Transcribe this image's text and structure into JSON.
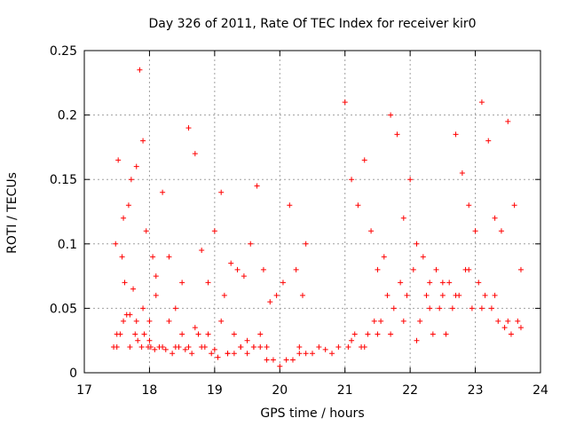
{
  "chart_data": {
    "type": "scatter",
    "title": "Day 326 of 2011, Rate Of TEC Index for receiver kir0",
    "xlabel": "GPS time / hours",
    "ylabel": "ROTI / TECUs",
    "xlim": [
      17,
      24
    ],
    "ylim": [
      0,
      0.25
    ],
    "x_ticks": [
      "17",
      "18",
      "19",
      "20",
      "21",
      "22",
      "23",
      "24"
    ],
    "y_ticks": [
      "0",
      "0.05",
      "0.1",
      "0.15",
      "0.2",
      "0.25"
    ],
    "grid": true,
    "legend": "none",
    "marker": "+",
    "color": "#ff0000",
    "series": [
      {
        "x": [
          17.45,
          17.48,
          17.5,
          17.52,
          17.55,
          17.58,
          17.6,
          17.62,
          17.65,
          17.68,
          17.7,
          17.72,
          17.75,
          17.78,
          17.8,
          17.82,
          17.85,
          17.88,
          17.9,
          17.92,
          17.95,
          17.98,
          18.0,
          18.02,
          18.05,
          18.08,
          18.1,
          18.15,
          18.2,
          18.25,
          18.3,
          18.35,
          18.4,
          18.45,
          18.5,
          18.55,
          18.6,
          18.65,
          18.7,
          18.75,
          18.8,
          18.85,
          18.9,
          18.95,
          19.0,
          19.05,
          19.1,
          19.15,
          19.2,
          19.25,
          19.3,
          19.35,
          19.4,
          19.45,
          19.5,
          19.55,
          19.6,
          19.65,
          19.7,
          19.75,
          19.8,
          19.85,
          19.9,
          19.95,
          20.0,
          20.05,
          20.1,
          20.15,
          20.2,
          20.25,
          20.3,
          20.35,
          20.4,
          20.5,
          20.6,
          20.7,
          20.8,
          20.9,
          21.0,
          21.05,
          21.1,
          21.15,
          21.2,
          21.25,
          21.3,
          21.35,
          21.4,
          21.45,
          21.5,
          21.55,
          21.6,
          21.65,
          21.7,
          21.75,
          21.8,
          21.85,
          21.9,
          21.95,
          22.0,
          22.05,
          22.1,
          22.15,
          22.2,
          22.25,
          22.3,
          22.35,
          22.4,
          22.45,
          22.5,
          22.55,
          22.6,
          22.65,
          22.7,
          22.75,
          22.8,
          22.85,
          22.9,
          22.95,
          23.0,
          23.05,
          23.1,
          23.15,
          23.2,
          23.25,
          23.3,
          23.35,
          23.4,
          23.45,
          23.5,
          23.55,
          23.6,
          23.65,
          23.7,
          17.5,
          17.6,
          17.7,
          17.8,
          17.9,
          18.0,
          18.1,
          18.2,
          18.3,
          18.4,
          18.5,
          18.6,
          18.7,
          18.8,
          18.9,
          19.0,
          19.1,
          19.2,
          19.3,
          19.4,
          19.5,
          19.6,
          19.7,
          19.8,
          20.3,
          20.4,
          21.1,
          21.3,
          21.5,
          21.7,
          21.9,
          22.1,
          22.3,
          22.5,
          22.7,
          22.9,
          23.1,
          23.3,
          23.5,
          23.7
        ],
        "y": [
          0.02,
          0.1,
          0.02,
          0.165,
          0.03,
          0.09,
          0.04,
          0.07,
          0.045,
          0.13,
          0.02,
          0.15,
          0.065,
          0.03,
          0.16,
          0.025,
          0.235,
          0.02,
          0.18,
          0.03,
          0.11,
          0.02,
          0.04,
          0.02,
          0.09,
          0.018,
          0.075,
          0.02,
          0.14,
          0.018,
          0.09,
          0.015,
          0.05,
          0.02,
          0.07,
          0.018,
          0.19,
          0.015,
          0.17,
          0.03,
          0.095,
          0.02,
          0.07,
          0.015,
          0.11,
          0.012,
          0.14,
          0.06,
          0.015,
          0.085,
          0.015,
          0.08,
          0.02,
          0.075,
          0.015,
          0.1,
          0.02,
          0.145,
          0.02,
          0.08,
          0.01,
          0.055,
          0.01,
          0.06,
          0.005,
          0.07,
          0.01,
          0.13,
          0.01,
          0.08,
          0.015,
          0.06,
          0.1,
          0.015,
          0.02,
          0.018,
          0.015,
          0.02,
          0.21,
          0.02,
          0.15,
          0.03,
          0.13,
          0.02,
          0.165,
          0.03,
          0.11,
          0.04,
          0.08,
          0.04,
          0.09,
          0.06,
          0.2,
          0.05,
          0.185,
          0.07,
          0.12,
          0.06,
          0.15,
          0.08,
          0.1,
          0.04,
          0.09,
          0.06,
          0.07,
          0.03,
          0.08,
          0.05,
          0.06,
          0.03,
          0.07,
          0.05,
          0.185,
          0.06,
          0.155,
          0.08,
          0.13,
          0.05,
          0.11,
          0.07,
          0.21,
          0.06,
          0.18,
          0.05,
          0.12,
          0.04,
          0.11,
          0.035,
          0.195,
          0.03,
          0.13,
          0.04,
          0.08,
          0.03,
          0.12,
          0.045,
          0.04,
          0.05,
          0.025,
          0.06,
          0.02,
          0.04,
          0.02,
          0.03,
          0.02,
          0.035,
          0.02,
          0.03,
          0.018,
          0.04,
          0.015,
          0.03,
          0.02,
          0.025,
          0.02,
          0.03,
          0.02,
          0.02,
          0.015,
          0.025,
          0.02,
          0.03,
          0.03,
          0.04,
          0.025,
          0.05,
          0.07,
          0.06,
          0.08,
          0.05,
          0.06,
          0.04,
          0.035
        ]
      }
    ]
  }
}
